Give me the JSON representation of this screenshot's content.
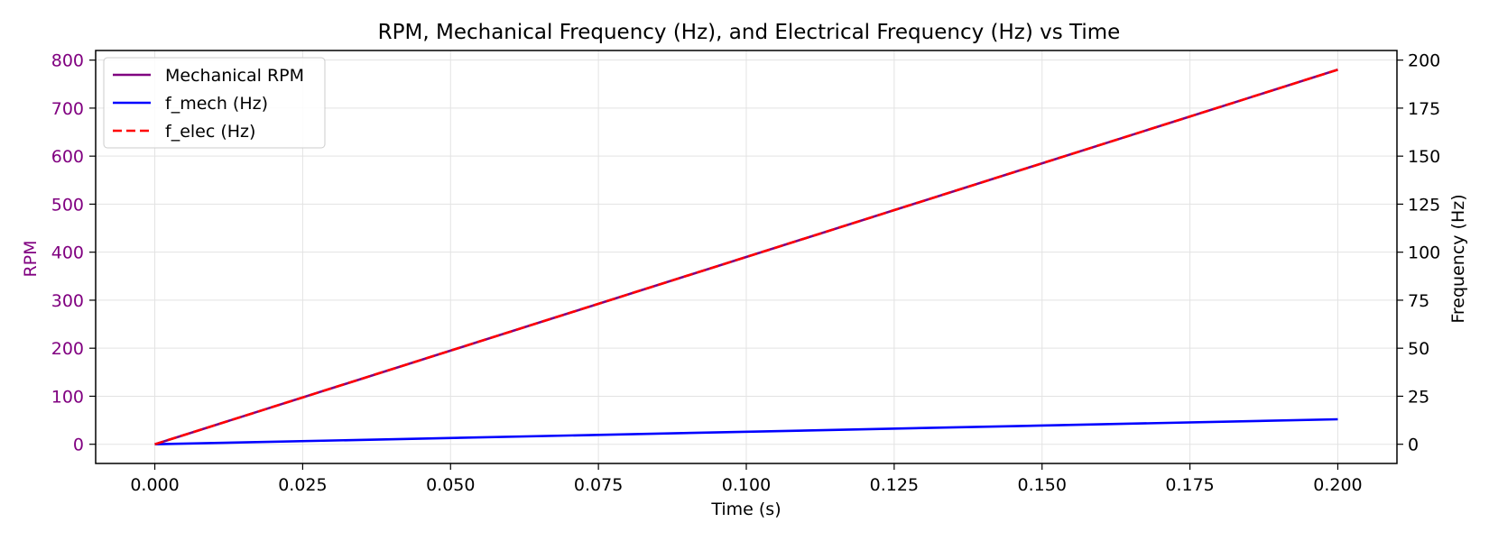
{
  "chart_data": {
    "type": "line",
    "title": "RPM, Mechanical Frequency (Hz), and Electrical Frequency (Hz) vs Time",
    "xlabel": "Time (s)",
    "ylabel_left": "RPM",
    "ylabel_right": "Frequency (Hz)",
    "xlim": [
      -0.01,
      0.21
    ],
    "ylim_left": [
      -40,
      820
    ],
    "ylim_right": [
      -10,
      205
    ],
    "x_ticks": [
      0.0,
      0.025,
      0.05,
      0.075,
      0.1,
      0.125,
      0.15,
      0.175,
      0.2
    ],
    "x_tick_labels": [
      "0.000",
      "0.025",
      "0.050",
      "0.075",
      "0.100",
      "0.125",
      "0.150",
      "0.175",
      "0.200"
    ],
    "y_left_ticks": [
      0,
      100,
      200,
      300,
      400,
      500,
      600,
      700,
      800
    ],
    "y_left_tick_labels": [
      "0",
      "100",
      "200",
      "300",
      "400",
      "500",
      "600",
      "700",
      "800"
    ],
    "y_right_ticks": [
      0,
      25,
      50,
      75,
      100,
      125,
      150,
      175,
      200
    ],
    "y_right_tick_labels": [
      "0",
      "25",
      "50",
      "75",
      "100",
      "125",
      "150",
      "175",
      "200"
    ],
    "grid": true,
    "legend_position": "top-left",
    "left_axis_color": "#800080",
    "series": [
      {
        "name": "Mechanical RPM",
        "axis": "left",
        "color": "#800080",
        "style": "solid",
        "x": [
          0.0,
          0.2
        ],
        "y": [
          0,
          780
        ]
      },
      {
        "name": "f_mech (Hz)",
        "axis": "right",
        "color": "#0000ff",
        "style": "solid",
        "x": [
          0.0,
          0.2
        ],
        "y": [
          0,
          13
        ]
      },
      {
        "name": "f_elec (Hz)",
        "axis": "right",
        "color": "#ff0000",
        "style": "dashed",
        "x": [
          0.0,
          0.2
        ],
        "y": [
          0,
          195
        ]
      }
    ]
  }
}
